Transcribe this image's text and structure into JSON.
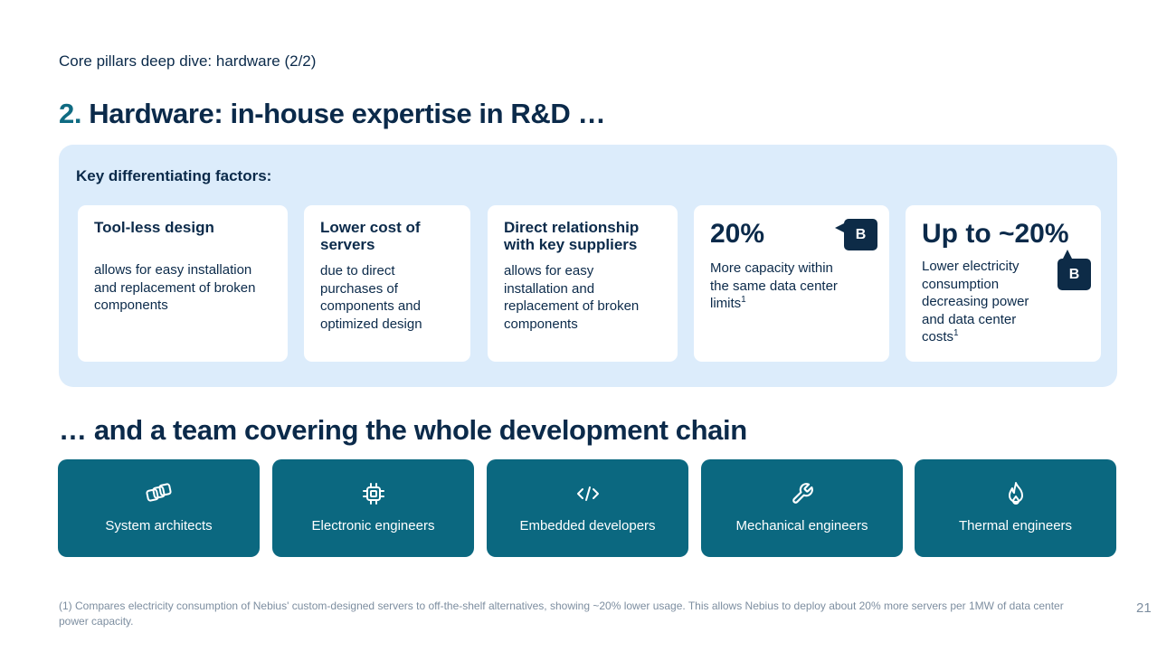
{
  "header": {
    "subtitle": "Core pillars deep dive: hardware (2/2)",
    "title_num": "2.",
    "title_text": "Hardware: in-house expertise in R&D …"
  },
  "factors": {
    "label": "Key differentiating factors:",
    "cards": [
      {
        "title": "Tool-less design",
        "text": "allows for easy installation and replacement of broken components"
      },
      {
        "title": "Lower cost of servers",
        "text": "due to direct purchases of components and optimized design"
      },
      {
        "title": "Direct relationship with key suppliers",
        "text": "allows for easy installation and replacement of broken components"
      },
      {
        "big": "20%",
        "text": "More capacity within the same data center limits",
        "sup": "1",
        "badge": "B"
      },
      {
        "big": "Up to ~20%",
        "text": "Lower electricity consumption decreasing power and data center costs",
        "sup": "1",
        "badge": "B"
      }
    ]
  },
  "team": {
    "heading": "… and a team covering the whole development chain",
    "items": [
      {
        "label": "System architects",
        "icon": "stacked-squares-icon"
      },
      {
        "label": "Electronic engineers",
        "icon": "chip-icon"
      },
      {
        "label": "Embedded developers",
        "icon": "code-icon"
      },
      {
        "label": "Mechanical engineers",
        "icon": "wrench-icon"
      },
      {
        "label": "Thermal engineers",
        "icon": "flame-icon"
      }
    ]
  },
  "footer": {
    "footnote": "(1) Compares electricity consumption of Nebius' custom-designed servers to off-the-shelf alternatives, showing ~20% lower usage. This allows Nebius to deploy about 20% more servers per 1MW of data center power capacity.",
    "page_number": "21"
  },
  "colors": {
    "navy": "#0b2a4a",
    "teal": "#0b6880",
    "panel": "#dcecfb",
    "badge": "#0d2b47"
  }
}
